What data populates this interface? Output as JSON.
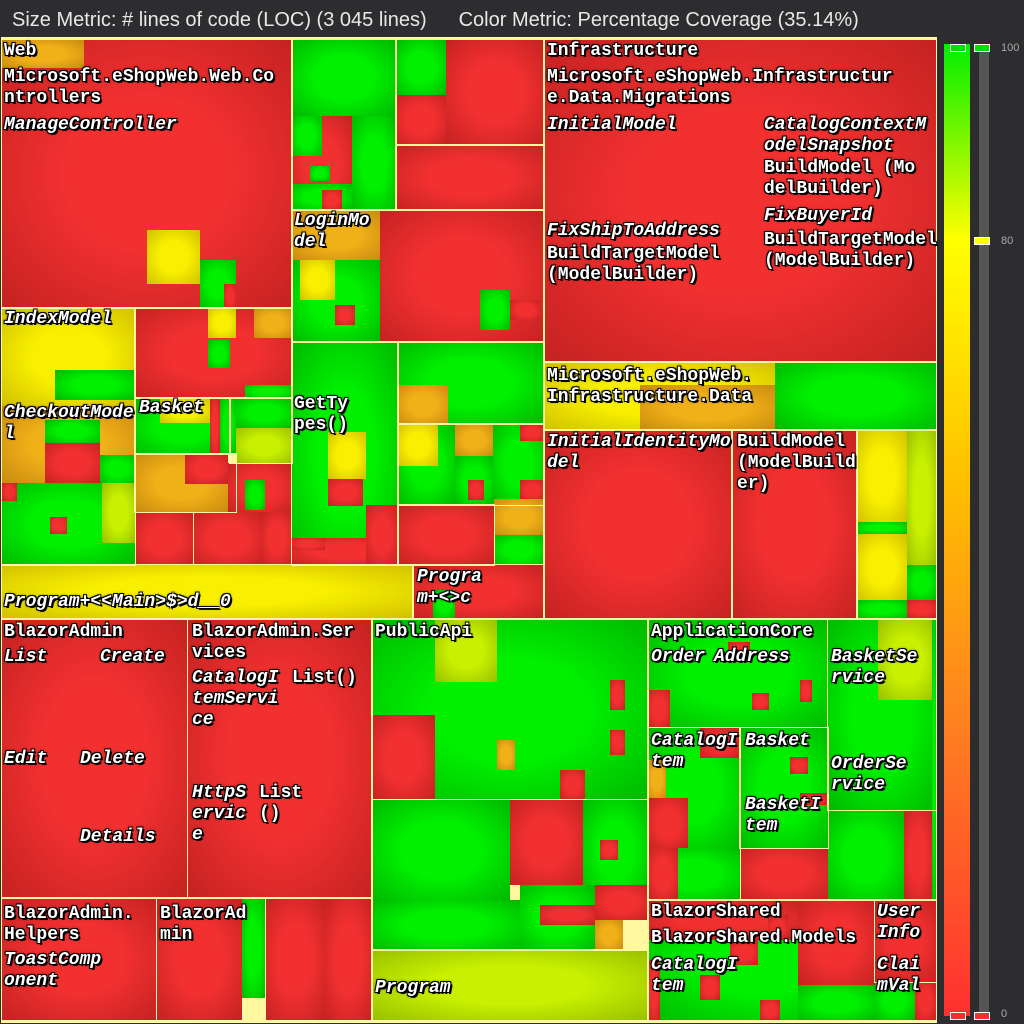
{
  "header": {
    "size_metric": "Size Metric: # lines of code (LOC) (3 045 lines)",
    "color_metric": "Color Metric: Percentage Coverage (35.14%)"
  },
  "colors": {
    "red": "#f23030",
    "green": "#00f000",
    "yellow": "#f8f000",
    "orange": "#f0b018",
    "lime": "#c8f000",
    "border": "#fff8a0"
  },
  "legend": {
    "max": "100",
    "mid": "80",
    "min": "0"
  },
  "labels": {
    "web": "Web",
    "web_controllers": "Microsoft.eShopWeb.Web.Controllers",
    "manage_controller": "ManageController",
    "login_model": "LoginModel",
    "index_model": "IndexModel",
    "checkout_model": "CheckoutModel",
    "basket": "Basket",
    "get_types": "GetTypes()",
    "program_main": "Program+<<Main>$>d__0",
    "program_c": "Program+<>c",
    "infrastructure": "Infrastructure",
    "migrations": "Microsoft.eShopWeb.Infrastructure.Data.Migrations",
    "initial_model": "InitialModel",
    "catalog_snapshot": "CatalogContextModelSnapshot",
    "build_model_1": "BuildModel (ModelBuilder)",
    "fix_buyer_id": "FixBuyerId",
    "fix_ship": "FixShipToAddress",
    "build_target_1": "BuildTargetModel (ModelBuilder)",
    "build_target_2": "BuildTargetModel (ModelBuilder)",
    "infra_data": "Microsoft.eShopWeb.Infrastructure.Data",
    "initial_identity": "InitialIdentityModel",
    "build_model_2": "BuildModel (ModelBuilder)",
    "blazor_admin": "BlazorAdmin",
    "list": "List",
    "create": "Create",
    "edit": "Edit",
    "delete": "Delete",
    "details": "Details",
    "blazor_admin_services": "BlazorAdmin.Services",
    "catalog_item_service": "CatalogItemService",
    "list_fn_1": "List()",
    "http_service": "HttpService",
    "list_fn_2": "List()",
    "blazor_admin_helpers": "BlazorAdmin.Helpers",
    "toast_component": "ToastComponent",
    "blazor_admin_2": "BlazorAdmin",
    "public_api": "PublicApi",
    "program": "Program",
    "application_core": "ApplicationCore",
    "order": "Order",
    "address": "Address",
    "basket_service": "BasketService",
    "catalog_item_1": "CatalogItem",
    "basket_2": "Basket",
    "basket_item": "BasketItem",
    "order_service": "OrderService",
    "blazor_shared": "BlazorShared",
    "blazor_shared_models": "BlazorShared.Models",
    "catalog_item_2": "CatalogItem",
    "user_info": "UserInfo",
    "claim_val": "ClaimVal"
  }
}
